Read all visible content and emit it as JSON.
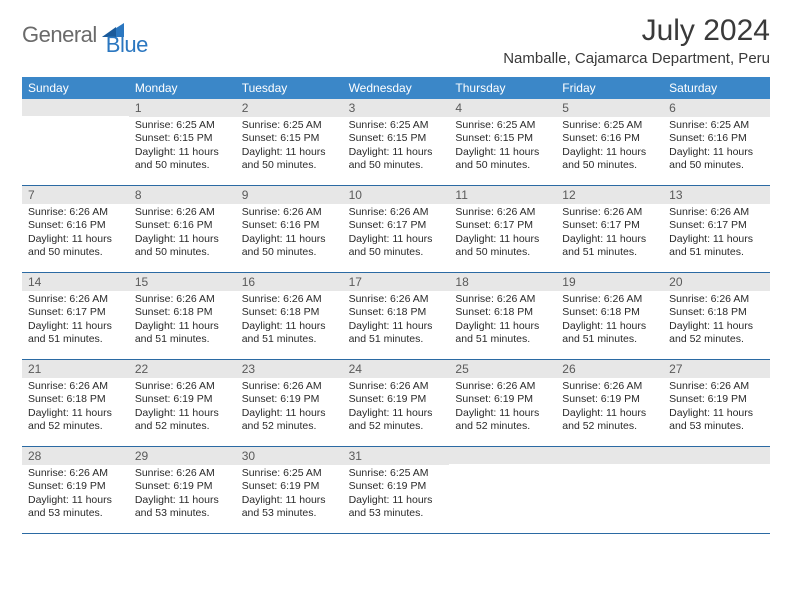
{
  "brand": {
    "part1": "General",
    "part2": "Blue"
  },
  "title": "July 2024",
  "location": "Namballe, Cajamarca Department, Peru",
  "colors": {
    "header_bg": "#3b87c8",
    "daynum_bg": "#e7e7e7",
    "rule": "#2b6aa3",
    "text": "#2a2a2a",
    "logo_gray": "#6a6a6a",
    "logo_blue": "#2b77c0"
  },
  "weekdays": [
    "Sunday",
    "Monday",
    "Tuesday",
    "Wednesday",
    "Thursday",
    "Friday",
    "Saturday"
  ],
  "weeks": [
    [
      null,
      {
        "n": "1",
        "sr": "6:25 AM",
        "ss": "6:15 PM",
        "dl": "11 hours and 50 minutes."
      },
      {
        "n": "2",
        "sr": "6:25 AM",
        "ss": "6:15 PM",
        "dl": "11 hours and 50 minutes."
      },
      {
        "n": "3",
        "sr": "6:25 AM",
        "ss": "6:15 PM",
        "dl": "11 hours and 50 minutes."
      },
      {
        "n": "4",
        "sr": "6:25 AM",
        "ss": "6:15 PM",
        "dl": "11 hours and 50 minutes."
      },
      {
        "n": "5",
        "sr": "6:25 AM",
        "ss": "6:16 PM",
        "dl": "11 hours and 50 minutes."
      },
      {
        "n": "6",
        "sr": "6:25 AM",
        "ss": "6:16 PM",
        "dl": "11 hours and 50 minutes."
      }
    ],
    [
      {
        "n": "7",
        "sr": "6:26 AM",
        "ss": "6:16 PM",
        "dl": "11 hours and 50 minutes."
      },
      {
        "n": "8",
        "sr": "6:26 AM",
        "ss": "6:16 PM",
        "dl": "11 hours and 50 minutes."
      },
      {
        "n": "9",
        "sr": "6:26 AM",
        "ss": "6:16 PM",
        "dl": "11 hours and 50 minutes."
      },
      {
        "n": "10",
        "sr": "6:26 AM",
        "ss": "6:17 PM",
        "dl": "11 hours and 50 minutes."
      },
      {
        "n": "11",
        "sr": "6:26 AM",
        "ss": "6:17 PM",
        "dl": "11 hours and 50 minutes."
      },
      {
        "n": "12",
        "sr": "6:26 AM",
        "ss": "6:17 PM",
        "dl": "11 hours and 51 minutes."
      },
      {
        "n": "13",
        "sr": "6:26 AM",
        "ss": "6:17 PM",
        "dl": "11 hours and 51 minutes."
      }
    ],
    [
      {
        "n": "14",
        "sr": "6:26 AM",
        "ss": "6:17 PM",
        "dl": "11 hours and 51 minutes."
      },
      {
        "n": "15",
        "sr": "6:26 AM",
        "ss": "6:18 PM",
        "dl": "11 hours and 51 minutes."
      },
      {
        "n": "16",
        "sr": "6:26 AM",
        "ss": "6:18 PM",
        "dl": "11 hours and 51 minutes."
      },
      {
        "n": "17",
        "sr": "6:26 AM",
        "ss": "6:18 PM",
        "dl": "11 hours and 51 minutes."
      },
      {
        "n": "18",
        "sr": "6:26 AM",
        "ss": "6:18 PM",
        "dl": "11 hours and 51 minutes."
      },
      {
        "n": "19",
        "sr": "6:26 AM",
        "ss": "6:18 PM",
        "dl": "11 hours and 51 minutes."
      },
      {
        "n": "20",
        "sr": "6:26 AM",
        "ss": "6:18 PM",
        "dl": "11 hours and 52 minutes."
      }
    ],
    [
      {
        "n": "21",
        "sr": "6:26 AM",
        "ss": "6:18 PM",
        "dl": "11 hours and 52 minutes."
      },
      {
        "n": "22",
        "sr": "6:26 AM",
        "ss": "6:19 PM",
        "dl": "11 hours and 52 minutes."
      },
      {
        "n": "23",
        "sr": "6:26 AM",
        "ss": "6:19 PM",
        "dl": "11 hours and 52 minutes."
      },
      {
        "n": "24",
        "sr": "6:26 AM",
        "ss": "6:19 PM",
        "dl": "11 hours and 52 minutes."
      },
      {
        "n": "25",
        "sr": "6:26 AM",
        "ss": "6:19 PM",
        "dl": "11 hours and 52 minutes."
      },
      {
        "n": "26",
        "sr": "6:26 AM",
        "ss": "6:19 PM",
        "dl": "11 hours and 52 minutes."
      },
      {
        "n": "27",
        "sr": "6:26 AM",
        "ss": "6:19 PM",
        "dl": "11 hours and 53 minutes."
      }
    ],
    [
      {
        "n": "28",
        "sr": "6:26 AM",
        "ss": "6:19 PM",
        "dl": "11 hours and 53 minutes."
      },
      {
        "n": "29",
        "sr": "6:26 AM",
        "ss": "6:19 PM",
        "dl": "11 hours and 53 minutes."
      },
      {
        "n": "30",
        "sr": "6:25 AM",
        "ss": "6:19 PM",
        "dl": "11 hours and 53 minutes."
      },
      {
        "n": "31",
        "sr": "6:25 AM",
        "ss": "6:19 PM",
        "dl": "11 hours and 53 minutes."
      },
      null,
      null,
      null
    ]
  ],
  "labels": {
    "sunrise": "Sunrise:",
    "sunset": "Sunset:",
    "daylight": "Daylight:"
  }
}
